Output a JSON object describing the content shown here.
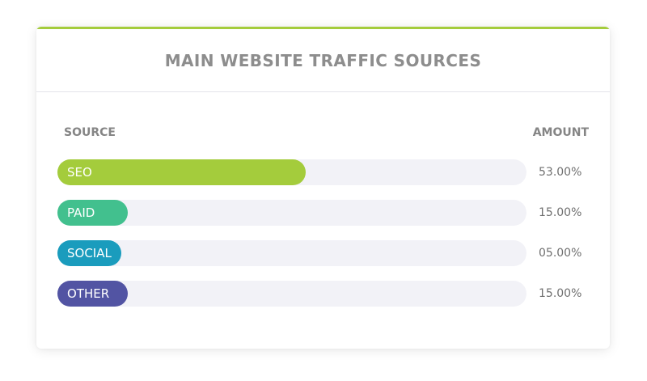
{
  "title": "MAIN WEBSITE TRAFFIC SOURCES",
  "columns": {
    "source": "SOURCE",
    "amount": "AMOUNT"
  },
  "chart_data": {
    "type": "bar",
    "orientation": "horizontal",
    "title": "MAIN WEBSITE TRAFFIC SOURCES",
    "categories": [
      "SEO",
      "PAID",
      "SOCIAL",
      "OTHER"
    ],
    "values": [
      53,
      15,
      5,
      15
    ],
    "labels": [
      "53.00%",
      "15.00%",
      "05.00%",
      "15.00%"
    ],
    "colors": [
      "#a4cc3c",
      "#42c08e",
      "#1a9cbd",
      "#5254a3"
    ],
    "track_color": "#f2f2f7",
    "accent_color": "#a4cc3c"
  },
  "rows": [
    {
      "label": "SEO",
      "amount": "53.00%"
    },
    {
      "label": "PAID",
      "amount": "15.00%"
    },
    {
      "label": "SOCIAL",
      "amount": "05.00%"
    },
    {
      "label": "OTHER",
      "amount": "15.00%"
    }
  ]
}
